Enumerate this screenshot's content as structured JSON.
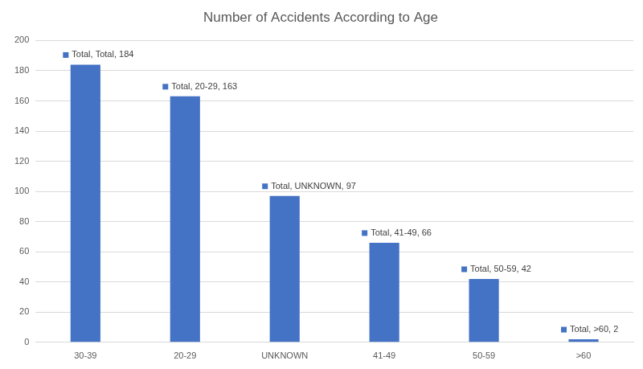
{
  "chart_data": {
    "type": "bar",
    "title": "Number of Accidents According to Age",
    "categories": [
      "30-39",
      "20-29",
      "UNKNOWN",
      "41-49",
      "50-59",
      ">60"
    ],
    "values": [
      184,
      163,
      97,
      66,
      42,
      2
    ],
    "value_labels": [
      "Total, Total, 184",
      "Total, 20-29, 163",
      "Total, UNKNOWN, 97",
      "Total, 41-49, 66",
      "Total, 50-59, 42",
      "Total, >60, 2"
    ],
    "data_labels": true,
    "color": "#4472c4",
    "ylim": [
      0,
      200
    ],
    "yticks": [
      0,
      20,
      40,
      60,
      80,
      100,
      120,
      140,
      160,
      180,
      200
    ],
    "grid": true
  }
}
